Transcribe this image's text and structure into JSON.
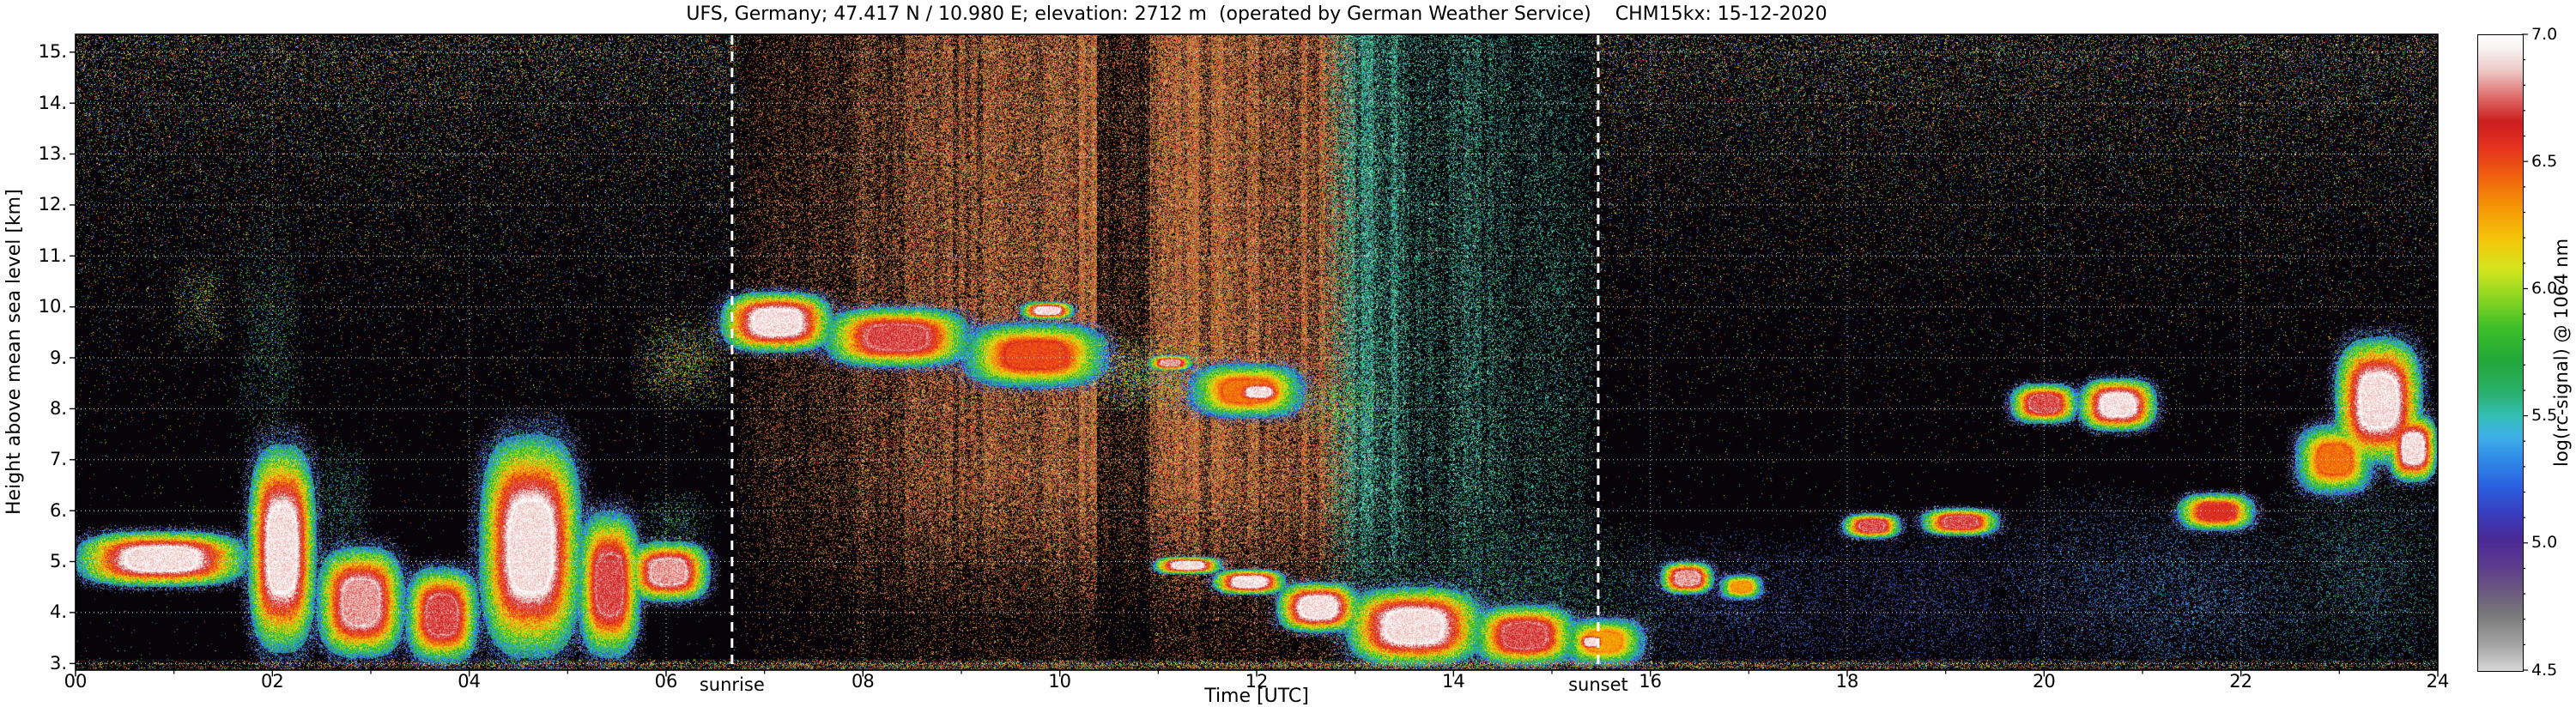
{
  "chart_data": {
    "type": "heatmap",
    "title": "UFS, Germany; 47.417 N / 10.980 E; elevation: 2712 m  (operated by German Weather Service)    CHM15kx: 15-12-2020",
    "xlabel": "Time [UTC]",
    "ylabel": "Height above mean sea level [km]",
    "colorbar_label": "log(rc-signal) @ 1064 nm",
    "x_range_hours": [
      0,
      24
    ],
    "x_ticks": [
      "00",
      "02",
      "04",
      "06",
      "08",
      "10",
      "12",
      "14",
      "16",
      "18",
      "20",
      "22",
      "24"
    ],
    "y_range_km": [
      2.87,
      15.35
    ],
    "y_ticks": [
      3,
      4,
      5,
      6,
      7,
      8,
      9,
      10,
      11,
      12,
      13,
      14,
      15
    ],
    "y_tick_labels": [
      "3.",
      "4.",
      "5.",
      "6.",
      "7.",
      "8.",
      "9.",
      "10.",
      "11.",
      "12.",
      "13.",
      "14.",
      "15."
    ],
    "colorbar_range": [
      4.5,
      7.0
    ],
    "colorbar_ticks": [
      "7.0",
      "6.5",
      "6.0",
      "5.5",
      "5.0",
      "4.5"
    ],
    "grid": {
      "on": true,
      "style": "dotted-white"
    },
    "annotations": [
      {
        "label": "sunrise",
        "t": 6.67
      },
      {
        "label": "sunset",
        "t": 15.47
      }
    ],
    "colormap_stops": [
      [
        4.5,
        "#d9d9d9"
      ],
      [
        4.6,
        "#a6a6a6"
      ],
      [
        4.72,
        "#7a7a7a"
      ],
      [
        4.82,
        "#6b5880"
      ],
      [
        4.92,
        "#5c3b8e"
      ],
      [
        5.02,
        "#4a2a96"
      ],
      [
        5.12,
        "#3a3ec0"
      ],
      [
        5.22,
        "#2b5fe0"
      ],
      [
        5.32,
        "#2f86e8"
      ],
      [
        5.42,
        "#3fb0e8"
      ],
      [
        5.5,
        "#35c0b8"
      ],
      [
        5.6,
        "#2ab06a"
      ],
      [
        5.72,
        "#22a83a"
      ],
      [
        5.85,
        "#3ec02a"
      ],
      [
        5.97,
        "#8ed622"
      ],
      [
        6.08,
        "#d6e61e"
      ],
      [
        6.2,
        "#f5c60a"
      ],
      [
        6.33,
        "#f59505"
      ],
      [
        6.45,
        "#f06010"
      ],
      [
        6.56,
        "#e63320"
      ],
      [
        6.66,
        "#cc1f1f"
      ],
      [
        6.76,
        "#e0706e"
      ],
      [
        6.86,
        "#eec9c6"
      ],
      [
        6.94,
        "#f7f0ef"
      ],
      [
        7.0,
        "#ffffff"
      ]
    ],
    "background_noise": {
      "night": {
        "base_probability": 0.0022,
        "top_probability": 0.24,
        "height_exponent": 3.2,
        "low_level_purple_probability": 0.0035,
        "value_range": [
          4.6,
          7.0
        ]
      },
      "day": {
        "sunrise": 6.67,
        "sunset": 15.47,
        "brown_until": 12.85,
        "transition": 0.4,
        "brown_tint": "#9a6030",
        "teal_tint": "#2e9e8a",
        "dim_columns": [
          [
            10.38,
            10.92,
            0.35
          ],
          [
            13.5,
            13.95,
            0.6
          ]
        ]
      }
    },
    "signal_features": [
      {
        "t": [
          0.0,
          1.75
        ],
        "h": [
          4.5,
          5.6
        ],
        "v": 7.0
      },
      {
        "t": [
          1.05,
          1.5
        ],
        "h": [
          9.3,
          10.8
        ],
        "v": 6.3,
        "mode": "sparse",
        "d": 0.3
      },
      {
        "t": [
          1.7,
          2.25
        ],
        "h": [
          7.5,
          11.3
        ],
        "v": 5.9,
        "mode": "sparse",
        "d": 0.22
      },
      {
        "t": [
          1.75,
          2.45
        ],
        "h": [
          3.2,
          7.3
        ],
        "v": 7.0
      },
      {
        "t": [
          2.45,
          3.35
        ],
        "h": [
          3.1,
          5.3
        ],
        "v": 6.9
      },
      {
        "t": [
          2.45,
          2.95
        ],
        "h": [
          5.2,
          7.2
        ],
        "v": 5.8,
        "mode": "sparse",
        "d": 0.3
      },
      {
        "t": [
          3.35,
          4.1
        ],
        "h": [
          3.0,
          4.9
        ],
        "v": 6.8
      },
      {
        "t": [
          4.1,
          5.15
        ],
        "h": [
          3.1,
          7.5
        ],
        "v": 7.0
      },
      {
        "t": [
          5.1,
          5.75
        ],
        "h": [
          3.1,
          6.0
        ],
        "v": 6.8
      },
      {
        "t": [
          5.6,
          6.45
        ],
        "h": [
          4.2,
          5.4
        ],
        "v": 6.9
      },
      {
        "t": [
          5.8,
          6.4
        ],
        "h": [
          5.3,
          6.3
        ],
        "v": 5.9,
        "mode": "sparse",
        "d": 0.3
      },
      {
        "t": [
          5.75,
          6.6
        ],
        "h": [
          8.2,
          9.7
        ],
        "v": 6.4,
        "mode": "sparse",
        "d": 0.45
      },
      {
        "t": [
          6.55,
          7.7
        ],
        "h": [
          9.1,
          10.3
        ],
        "v": 7.0
      },
      {
        "t": [
          7.6,
          9.1
        ],
        "h": [
          8.8,
          10.0
        ],
        "v": 6.8
      },
      {
        "t": [
          9.0,
          10.5
        ],
        "h": [
          8.4,
          9.7
        ],
        "v": 6.6
      },
      {
        "t": [
          9.6,
          10.15
        ],
        "h": [
          9.75,
          10.1
        ],
        "v": 7.0
      },
      {
        "t": [
          10.3,
          11.5
        ],
        "h": [
          8.1,
          9.3
        ],
        "v": 6.3,
        "mode": "sparse",
        "d": 0.5
      },
      {
        "t": [
          10.9,
          11.35
        ],
        "h": [
          8.75,
          9.05
        ],
        "v": 6.9
      },
      {
        "t": [
          11.3,
          12.5
        ],
        "h": [
          7.8,
          8.9
        ],
        "v": 6.5
      },
      {
        "t": [
          11.75,
          12.3
        ],
        "h": [
          8.1,
          8.55
        ],
        "v": 7.0
      },
      {
        "t": [
          12.4,
          13.3
        ],
        "h": [
          7.6,
          8.5
        ],
        "v": 6.1,
        "mode": "sparse",
        "d": 0.4
      },
      {
        "t": [
          10.95,
          11.65
        ],
        "h": [
          4.75,
          5.1
        ],
        "v": 7.0
      },
      {
        "t": [
          11.55,
          12.3
        ],
        "h": [
          4.35,
          4.85
        ],
        "v": 7.0
      },
      {
        "t": [
          12.2,
          13.05
        ],
        "h": [
          3.6,
          4.6
        ],
        "v": 7.0
      },
      {
        "t": [
          12.9,
          14.3
        ],
        "h": [
          2.95,
          4.5
        ],
        "v": 7.0
      },
      {
        "t": [
          14.2,
          15.25
        ],
        "h": [
          2.95,
          4.15
        ],
        "v": 6.8
      },
      {
        "t": [
          15.1,
          15.95
        ],
        "h": [
          2.95,
          3.9
        ],
        "v": 6.4
      },
      {
        "t": [
          15.25,
          15.55
        ],
        "h": [
          3.25,
          3.6
        ],
        "v": 7.0
      },
      {
        "t": [
          13.1,
          16.05
        ],
        "h": [
          2.95,
          5.6
        ],
        "v": 5.8,
        "mode": "sparse",
        "d": 0.3
      },
      {
        "t": [
          16.1,
          16.65
        ],
        "h": [
          4.35,
          5.0
        ],
        "v": 6.9
      },
      {
        "t": [
          16.7,
          17.15
        ],
        "h": [
          4.25,
          4.75
        ],
        "v": 6.4
      },
      {
        "t": [
          15.9,
          17.7
        ],
        "h": [
          2.9,
          5.3
        ],
        "v": 5.35,
        "mode": "sparse",
        "d": 0.25
      },
      {
        "t": [
          17.95,
          18.55
        ],
        "h": [
          5.45,
          5.95
        ],
        "v": 6.8
      },
      {
        "t": [
          18.75,
          19.55
        ],
        "h": [
          5.5,
          6.05
        ],
        "v": 6.8
      },
      {
        "t": [
          17.6,
          19.9
        ],
        "h": [
          2.9,
          5.7
        ],
        "v": 5.3,
        "mode": "sparse",
        "d": 0.22
      },
      {
        "t": [
          19.65,
          20.35
        ],
        "h": [
          7.7,
          8.5
        ],
        "v": 6.8
      },
      {
        "t": [
          20.35,
          21.15
        ],
        "h": [
          7.55,
          8.6
        ],
        "v": 7.0
      },
      {
        "t": [
          19.8,
          21.3
        ],
        "h": [
          2.9,
          6.1
        ],
        "v": 5.45,
        "mode": "sparse",
        "d": 0.25
      },
      {
        "t": [
          21.35,
          22.15
        ],
        "h": [
          5.6,
          6.35
        ],
        "v": 6.7
      },
      {
        "t": [
          20.9,
          22.45
        ],
        "h": [
          2.9,
          5.6
        ],
        "v": 5.5,
        "mode": "sparse",
        "d": 0.3
      },
      {
        "t": [
          22.55,
          23.35
        ],
        "h": [
          6.3,
          7.7
        ],
        "v": 6.5
      },
      {
        "t": [
          22.95,
          23.85
        ],
        "h": [
          6.9,
          9.4
        ],
        "v": 7.0
      },
      {
        "t": [
          23.5,
          24.0
        ],
        "h": [
          6.55,
          7.9
        ],
        "v": 7.0
      },
      {
        "t": [
          22.45,
          24.0
        ],
        "h": [
          2.9,
          6.6
        ],
        "v": 5.7,
        "mode": "sparse",
        "d": 0.3
      },
      {
        "t": [
          0.0,
          24.0
        ],
        "h": [
          2.86,
          3.06
        ],
        "v": 6.6,
        "mode": "sparse",
        "d": 0.6
      }
    ]
  }
}
